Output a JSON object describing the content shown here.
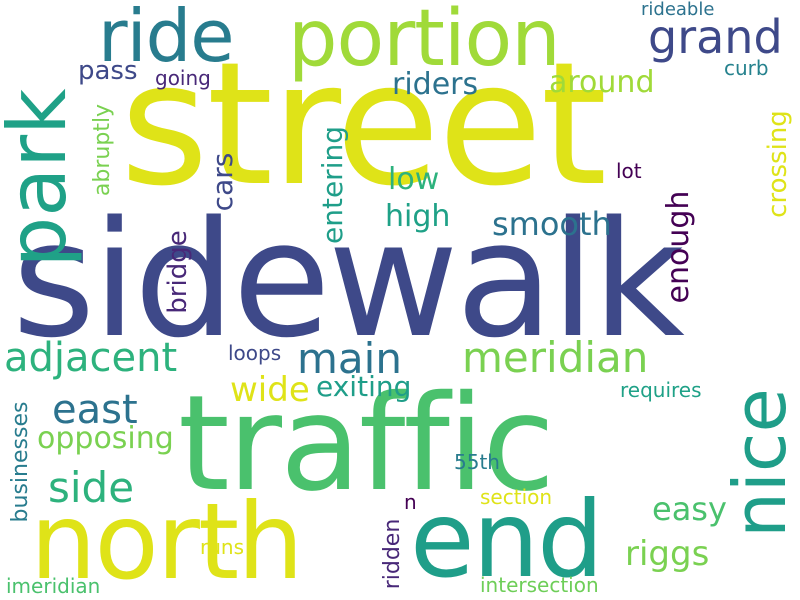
{
  "cloud": {
    "words": [
      {
        "text": "street",
        "color": "#dfe318",
        "rotated": false
      },
      {
        "text": "sidewalk",
        "color": "#3e4989",
        "rotated": false
      },
      {
        "text": "traffic",
        "color": "#4ac16d",
        "rotated": false
      },
      {
        "text": "north",
        "color": "#dfe318",
        "rotated": false
      },
      {
        "text": "end",
        "color": "#1f9e89",
        "rotated": false
      },
      {
        "text": "portion",
        "color": "#a0da39",
        "rotated": false
      },
      {
        "text": "ride",
        "color": "#287c8e",
        "rotated": false
      },
      {
        "text": "park",
        "color": "#1fa187",
        "rotated": true
      },
      {
        "text": "nice",
        "color": "#1f9e89",
        "rotated": true
      },
      {
        "text": "grand",
        "color": "#3e4989",
        "rotated": false
      },
      {
        "text": "meridian",
        "color": "#7ad151",
        "rotated": false
      },
      {
        "text": "main",
        "color": "#2c728e",
        "rotated": false
      },
      {
        "text": "adjacent",
        "color": "#2db27d",
        "rotated": false
      },
      {
        "text": "east",
        "color": "#2c728e",
        "rotated": false
      },
      {
        "text": "side",
        "color": "#2db27d",
        "rotated": false
      },
      {
        "text": "riggs",
        "color": "#7ad151",
        "rotated": false
      },
      {
        "text": "easy",
        "color": "#4ac16d",
        "rotated": false
      },
      {
        "text": "smooth",
        "color": "#2c728e",
        "rotated": false
      },
      {
        "text": "around",
        "color": "#a0da39",
        "rotated": false
      },
      {
        "text": "riders",
        "color": "#2c728e",
        "rotated": false
      },
      {
        "text": "pass",
        "color": "#3e4989",
        "rotated": false
      },
      {
        "text": "low",
        "color": "#2db27d",
        "rotated": false
      },
      {
        "text": "high",
        "color": "#1fa187",
        "rotated": false
      },
      {
        "text": "opposing",
        "color": "#7ad151",
        "rotated": false
      },
      {
        "text": "exiting",
        "color": "#1f9e89",
        "rotated": false
      },
      {
        "text": "wide",
        "color": "#dfe318",
        "rotated": false
      },
      {
        "text": "enough",
        "color": "#440154",
        "rotated": true
      },
      {
        "text": "cars",
        "color": "#3e4989",
        "rotated": true
      },
      {
        "text": "entering",
        "color": "#1f9e89",
        "rotated": true
      },
      {
        "text": "crossing",
        "color": "#dfe318",
        "rotated": true
      },
      {
        "text": "bridge",
        "color": "#482878",
        "rotated": true
      },
      {
        "text": "abruptly",
        "color": "#7ad151",
        "rotated": true
      },
      {
        "text": "businesses",
        "color": "#287c8e",
        "rotated": true
      },
      {
        "text": "ridden",
        "color": "#482878",
        "rotated": true
      },
      {
        "text": "loops",
        "color": "#3e4989",
        "rotated": false
      },
      {
        "text": "going",
        "color": "#482878",
        "rotated": false
      },
      {
        "text": "curb",
        "color": "#26828e",
        "rotated": false
      },
      {
        "text": "lot",
        "color": "#440154",
        "rotated": false
      },
      {
        "text": "rideable",
        "color": "#2c728e",
        "rotated": false
      },
      {
        "text": "requires",
        "color": "#1fa187",
        "rotated": false
      },
      {
        "text": "55th",
        "color": "#287c8e",
        "rotated": false
      },
      {
        "text": "section",
        "color": "#dfe318",
        "rotated": false
      },
      {
        "text": "n",
        "color": "#440154",
        "rotated": false
      },
      {
        "text": "runs",
        "color": "#dfe318",
        "rotated": false
      },
      {
        "text": "intersection",
        "color": "#6ece58",
        "rotated": false
      },
      {
        "text": "imeridian",
        "color": "#4ac16d",
        "rotated": false
      }
    ]
  }
}
